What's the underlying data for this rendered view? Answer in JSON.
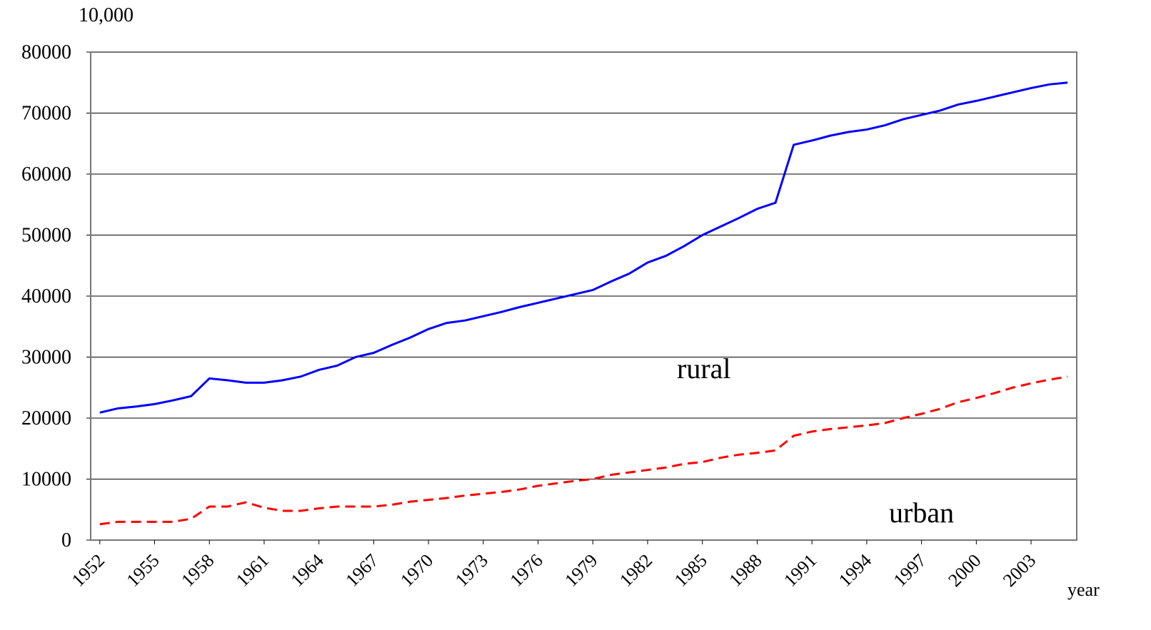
{
  "chart_data": {
    "type": "line",
    "y_unit_label": "10,000",
    "x_label": "year",
    "x": [
      1952,
      1953,
      1954,
      1955,
      1956,
      1957,
      1958,
      1959,
      1960,
      1961,
      1962,
      1963,
      1964,
      1965,
      1966,
      1967,
      1968,
      1969,
      1970,
      1971,
      1972,
      1973,
      1974,
      1975,
      1976,
      1977,
      1978,
      1979,
      1980,
      1981,
      1982,
      1983,
      1984,
      1985,
      1986,
      1987,
      1988,
      1989,
      1990,
      1991,
      1992,
      1993,
      1994,
      1995,
      1996,
      1997,
      1998,
      1999,
      2000,
      2001,
      2002,
      2003,
      2004,
      2005
    ],
    "series": [
      {
        "name": "rural",
        "color": "#0000ff",
        "dashed": false,
        "values": [
          20900,
          21600,
          21900,
          22300,
          22900,
          23600,
          26500,
          26200,
          25800,
          25800,
          26200,
          26800,
          27900,
          28600,
          30000,
          30700,
          32000,
          33200,
          34600,
          35600,
          36000,
          36700,
          37400,
          38200,
          38900,
          39600,
          40300,
          41000,
          42400,
          43700,
          45500,
          46600,
          48200,
          50000,
          51400,
          52800,
          54300,
          55300,
          64800,
          65500,
          66300,
          66900,
          67300,
          68000,
          69000,
          69700,
          70400,
          71400,
          72000,
          72700,
          73400,
          74100,
          74700,
          75000
        ]
      },
      {
        "name": "urban",
        "color": "#ff0000",
        "dashed": true,
        "values": [
          2600,
          3000,
          3000,
          3000,
          3000,
          3500,
          5500,
          5500,
          6200,
          5300,
          4800,
          4800,
          5200,
          5500,
          5500,
          5500,
          5800,
          6300,
          6600,
          6900,
          7300,
          7600,
          7900,
          8300,
          8900,
          9300,
          9700,
          10000,
          10700,
          11100,
          11500,
          11900,
          12500,
          12800,
          13500,
          14000,
          14300,
          14700,
          17100,
          17800,
          18200,
          18500,
          18800,
          19200,
          20000,
          20700,
          21500,
          22600,
          23300,
          24100,
          25000,
          25700,
          26300,
          26800
        ]
      }
    ],
    "xlim": [
      1951.5,
      2005.5
    ],
    "xticks": [
      1952,
      1955,
      1958,
      1961,
      1964,
      1967,
      1970,
      1973,
      1976,
      1979,
      1982,
      1985,
      1988,
      1991,
      1994,
      1997,
      2000,
      2003
    ],
    "ylim": [
      0,
      80000
    ],
    "yticks": [
      0,
      10000,
      20000,
      30000,
      40000,
      50000,
      60000,
      70000,
      80000
    ],
    "grid": true
  }
}
